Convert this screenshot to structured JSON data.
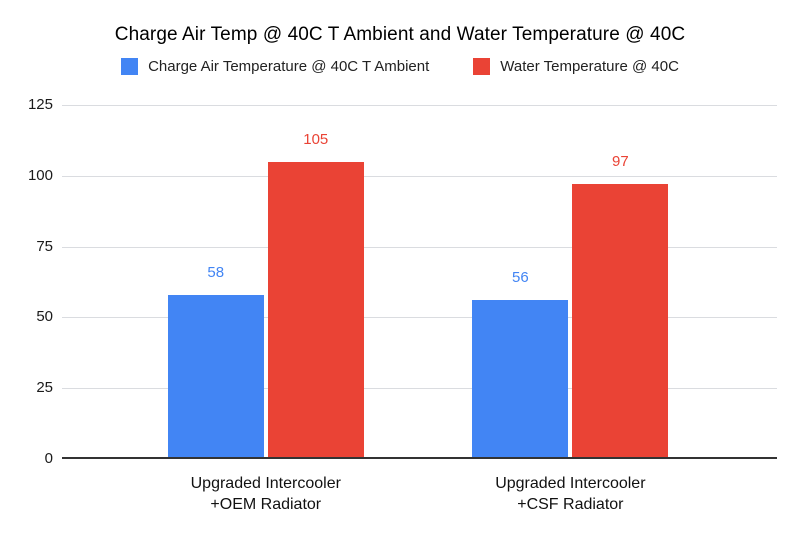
{
  "chart_data": {
    "type": "bar",
    "title": "Charge Air Temp @ 40C T Ambient and Water Temperature @ 40C",
    "categories": [
      "Upgraded Intercooler\n+OEM Radiator",
      "Upgraded Intercooler\n+CSF Radiator"
    ],
    "series": [
      {
        "name": "Charge Air Temperature @ 40C T Ambient",
        "color": "#4285F4",
        "values": [
          58,
          56
        ]
      },
      {
        "name": "Water Temperature @ 40C",
        "color": "#EA4335",
        "values": [
          105,
          97
        ]
      }
    ],
    "yticks": [
      0,
      25,
      50,
      75,
      100,
      125
    ],
    "ylim": [
      0,
      125
    ],
    "xlabel": "",
    "ylabel": "",
    "grid": true,
    "legend_position": "top",
    "data_labels": true,
    "background": "#ffffff",
    "gridline_color": "#dadce0",
    "baseline_color": "#333333"
  }
}
